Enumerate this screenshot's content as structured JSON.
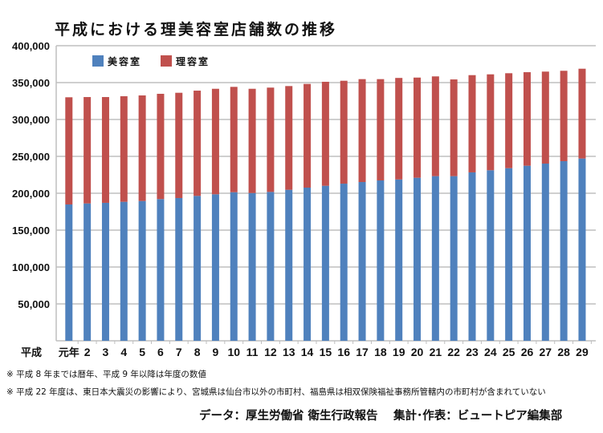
{
  "chart_data": {
    "type": "bar",
    "stacked": true,
    "title": "平成における理美容室店舗数の推移",
    "xlabel": "平成",
    "ylabel": "",
    "ylim": [
      0,
      400000
    ],
    "yticks": [
      50000,
      100000,
      150000,
      200000,
      250000,
      300000,
      350000,
      400000
    ],
    "ytick_labels": [
      "50,000",
      "100,000",
      "150,000",
      "200,000",
      "250,000",
      "300,000",
      "350,000",
      "400,000"
    ],
    "grid": true,
    "legend_position": "top-left",
    "categories": [
      "元年",
      "2",
      "3",
      "4",
      "5",
      "6",
      "7",
      "8",
      "9",
      "10",
      "11",
      "12",
      "13",
      "14",
      "15",
      "16",
      "17",
      "18",
      "19",
      "20",
      "21",
      "22",
      "23",
      "24",
      "25",
      "26",
      "27",
      "28",
      "29"
    ],
    "series": [
      {
        "name": "美容室",
        "color": "#4f81bd",
        "values": [
          184800,
          186200,
          187000,
          188400,
          189500,
          192100,
          193500,
          196400,
          198600,
          201400,
          200300,
          201800,
          204700,
          207600,
          210100,
          213000,
          215200,
          217400,
          218700,
          221000,
          223200,
          223200,
          228300,
          231200,
          234000,
          237300,
          240200,
          243500,
          247100
        ]
      },
      {
        "name": "理容室",
        "color": "#c0504d",
        "values": [
          145300,
          144200,
          143400,
          143100,
          143100,
          142700,
          142700,
          142700,
          143000,
          142800,
          141300,
          141400,
          140600,
          140600,
          141000,
          139500,
          139500,
          137300,
          137600,
          135800,
          135200,
          131100,
          131800,
          130000,
          128700,
          126800,
          124700,
          122500,
          121700
        ]
      }
    ]
  },
  "notes": [
    "※ 平成 8 年までは暦年、平成 9 年以降は年度の数値",
    "※ 平成 22 年度は、東日本大震災の影響により、宮城県は仙台市以外の市町村、福島県は相双保険福祉事務所管轄内の市町村が含まれていない"
  ],
  "credits": {
    "source": "データ：厚生労働省 衛生行政報告",
    "author": "集計･作表：ビュートピア編集部"
  }
}
